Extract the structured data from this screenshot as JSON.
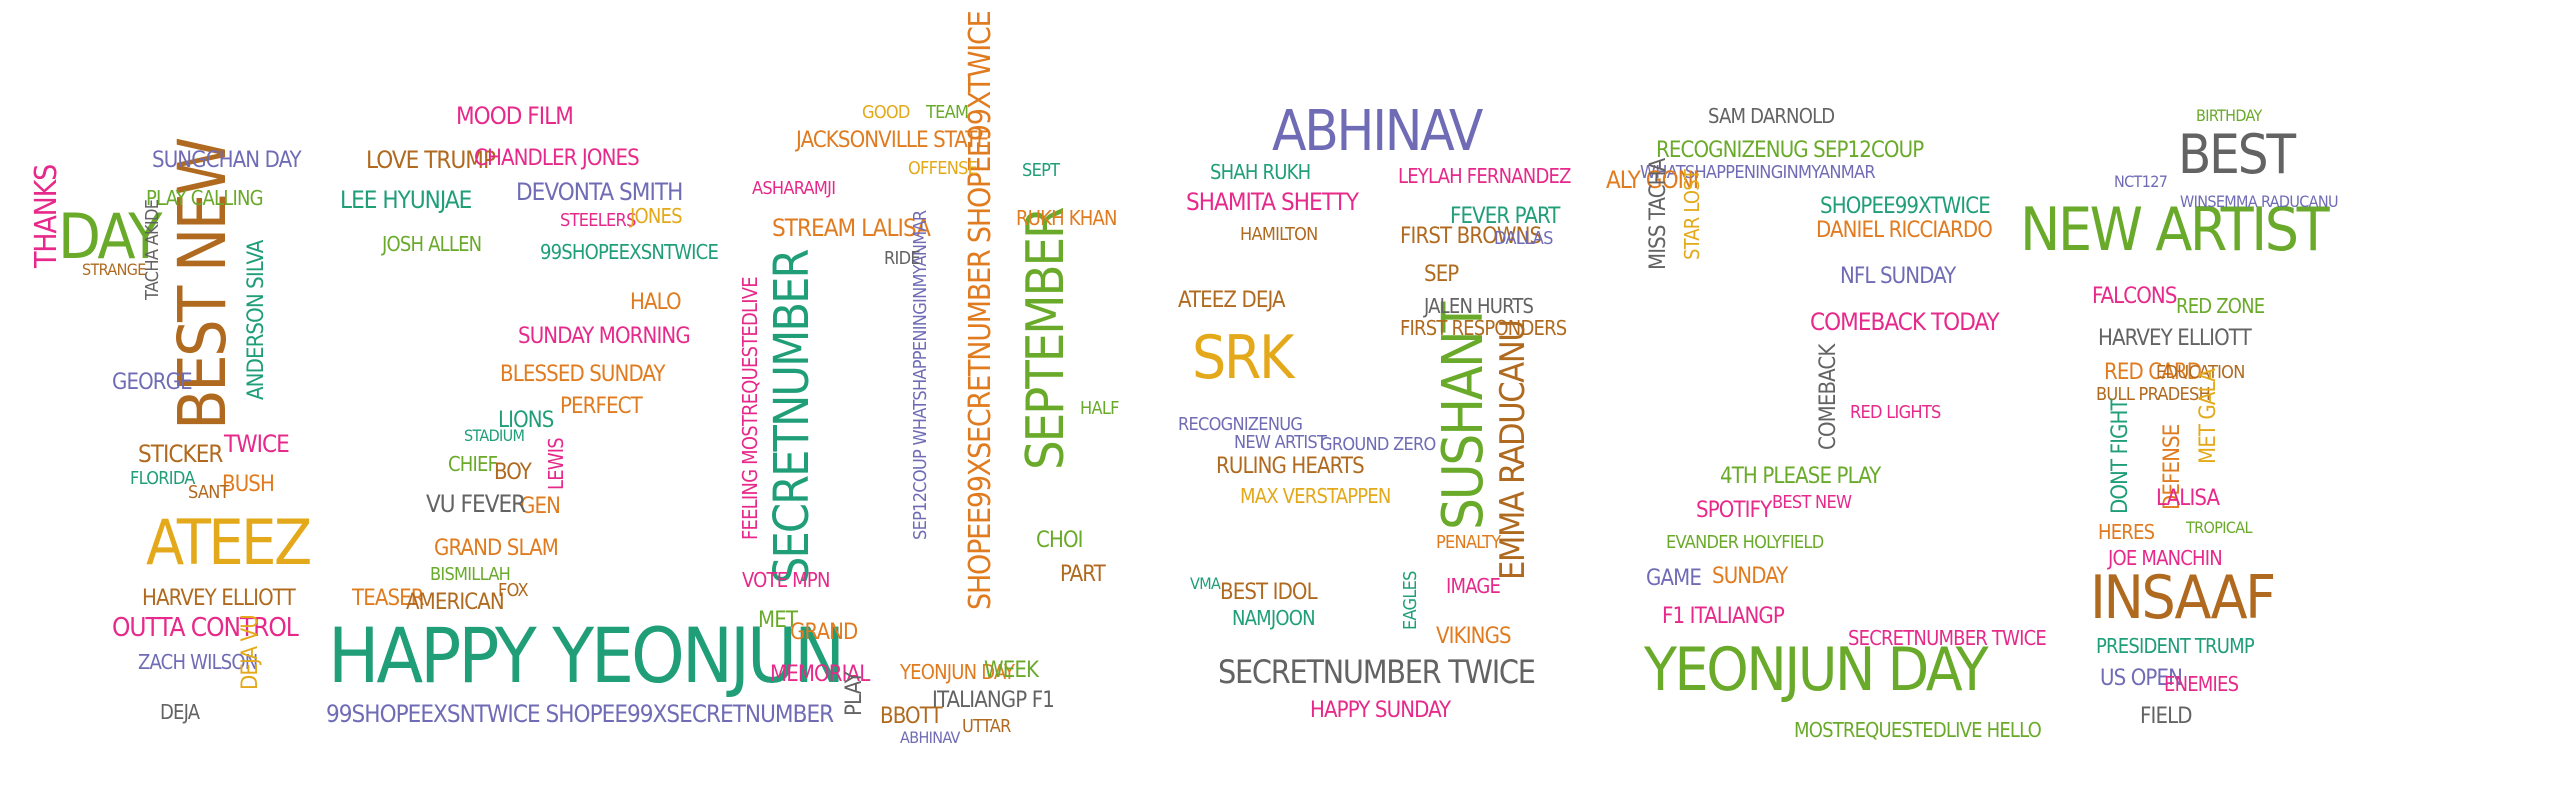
{
  "palette": {
    "green": "#6aaa2a",
    "teal": "#1f9e78",
    "orange": "#e07b1f",
    "purple": "#6f6cb5",
    "pink": "#e6298a",
    "gold": "#e3a91a",
    "brown": "#b06a1f",
    "gray": "#636363",
    "red": "#d55e00"
  },
  "words": [
    {
      "text": "DAY",
      "color": "green"
    },
    {
      "text": "BEST NEW",
      "color": "brown"
    },
    {
      "text": "ATEEZ",
      "color": "gold"
    },
    {
      "text": "OUTTA CONTROL",
      "color": "pink"
    },
    {
      "text": "HARVEY ELLIOTT",
      "color": "brown"
    },
    {
      "text": "ZACH WILSON",
      "color": "purple"
    },
    {
      "text": "SUNGCHAN DAY",
      "color": "purple"
    },
    {
      "text": "PLAY CALLING",
      "color": "green"
    },
    {
      "text": "GEORGE",
      "color": "purple"
    },
    {
      "text": "STICKER",
      "color": "brown"
    },
    {
      "text": "FLORIDA",
      "color": "teal"
    },
    {
      "text": "TWICE",
      "color": "pink"
    },
    {
      "text": "BUSH",
      "color": "orange"
    },
    {
      "text": "SANT",
      "color": "brown"
    },
    {
      "text": "DEJA",
      "color": "gray"
    },
    {
      "text": "DEJA VU",
      "color": "gold"
    },
    {
      "text": "ANDERSON SILVA",
      "color": "teal"
    },
    {
      "text": "TACHA AKIDE",
      "color": "gray"
    },
    {
      "text": "THANKS",
      "color": "pink"
    },
    {
      "text": "STRANGE",
      "color": "brown"
    },
    {
      "text": "HAPPY YEONJUN",
      "color": "teal"
    },
    {
      "text": "99SHOPEEXSNTWICE SHOPEE99XSECRETNUMBER",
      "color": "purple"
    },
    {
      "text": "MOOD FILM",
      "color": "pink"
    },
    {
      "text": "LOVE TRUMP",
      "color": "brown"
    },
    {
      "text": "CHANDLER JONES",
      "color": "pink"
    },
    {
      "text": "LEE HYUNJAE",
      "color": "teal"
    },
    {
      "text": "DEVONTA SMITH",
      "color": "purple"
    },
    {
      "text": "JOSH ALLEN",
      "color": "green"
    },
    {
      "text": "99SHOPEEXSNTWICE",
      "color": "teal"
    },
    {
      "text": "SUNDAY MORNING",
      "color": "pink"
    },
    {
      "text": "BLESSED SUNDAY",
      "color": "orange"
    },
    {
      "text": "PERFECT",
      "color": "orange"
    },
    {
      "text": "LIONS",
      "color": "teal"
    },
    {
      "text": "STADIUM",
      "color": "teal"
    },
    {
      "text": "CHIEF",
      "color": "green"
    },
    {
      "text": "BOY",
      "color": "brown"
    },
    {
      "text": "GEN",
      "color": "orange"
    },
    {
      "text": "VU FEVER",
      "color": "gray"
    },
    {
      "text": "GRAND SLAM",
      "color": "orange"
    },
    {
      "text": "BISMILLAH",
      "color": "green"
    },
    {
      "text": "TEASER",
      "color": "orange"
    },
    {
      "text": "AMERICAN",
      "color": "brown"
    },
    {
      "text": "HALO",
      "color": "orange"
    },
    {
      "text": "STEELERS",
      "color": "pink"
    },
    {
      "text": "JONES",
      "color": "gold"
    },
    {
      "text": "LEWIS",
      "color": "pink"
    },
    {
      "text": "FOX",
      "color": "brown"
    },
    {
      "text": "SECRETNUMBER",
      "color": "teal"
    },
    {
      "text": "SEPTEMBER",
      "color": "green"
    },
    {
      "text": "SHOPEE99XSECRETNUMBER SHOPEE99XTWICE",
      "color": "orange"
    },
    {
      "text": "JACKSONVILLE STATE",
      "color": "orange"
    },
    {
      "text": "STREAM LALISA",
      "color": "orange"
    },
    {
      "text": "RUKH KHAN",
      "color": "orange"
    },
    {
      "text": "ASHARAMJI",
      "color": "pink"
    },
    {
      "text": "FEELING MOSTREQUESTEDLIVE",
      "color": "pink"
    },
    {
      "text": "SEP12COUP WHATSHAPPENINGINMYANMAR",
      "color": "purple"
    },
    {
      "text": "VOTE MPN",
      "color": "pink"
    },
    {
      "text": "MET",
      "color": "green"
    },
    {
      "text": "GRAND",
      "color": "orange"
    },
    {
      "text": "MEMORIAL",
      "color": "pink"
    },
    {
      "text": "PLAY",
      "color": "gray"
    },
    {
      "text": "BBOTT",
      "color": "brown"
    },
    {
      "text": "YEONJUN DAY",
      "color": "orange"
    },
    {
      "text": "WEEK",
      "color": "green"
    },
    {
      "text": "ITALIANGP F1",
      "color": "gray"
    },
    {
      "text": "UTTAR",
      "color": "brown"
    },
    {
      "text": "ABHINAV",
      "color": "purple"
    },
    {
      "text": "CHOI",
      "color": "green"
    },
    {
      "text": "PART",
      "color": "brown"
    },
    {
      "text": "HALF",
      "color": "green"
    },
    {
      "text": "SEPT",
      "color": "teal"
    },
    {
      "text": "RIDE",
      "color": "gray"
    },
    {
      "text": "OFFENSE",
      "color": "gold"
    },
    {
      "text": "GOOD",
      "color": "gold"
    },
    {
      "text": "TEAM",
      "color": "green"
    },
    {
      "text": "VMA",
      "color": "teal"
    },
    {
      "text": "ABHINAV",
      "color": "purple"
    },
    {
      "text": "SRK",
      "color": "gold"
    },
    {
      "text": "SUSHANT",
      "color": "green"
    },
    {
      "text": "EMMA RADUCANU",
      "color": "brown"
    },
    {
      "text": "SHAMITA SHETTY",
      "color": "pink"
    },
    {
      "text": "SHAH RUKH",
      "color": "teal"
    },
    {
      "text": "LEYLAH FERNANDEZ",
      "color": "pink"
    },
    {
      "text": "FEVER PART",
      "color": "teal"
    },
    {
      "text": "HAMILTON",
      "color": "brown"
    },
    {
      "text": "FIRST BROWNS",
      "color": "brown"
    },
    {
      "text": "DALLAS",
      "color": "purple"
    },
    {
      "text": "SEP",
      "color": "brown"
    },
    {
      "text": "JALEN HURTS",
      "color": "gray"
    },
    {
      "text": "FIRST RESPONDERS",
      "color": "brown"
    },
    {
      "text": "ATEEZ DEJA",
      "color": "brown"
    },
    {
      "text": "RECOGNIZENUG",
      "color": "purple"
    },
    {
      "text": "NEW ARTIST",
      "color": "purple"
    },
    {
      "text": "GROUND ZERO",
      "color": "purple"
    },
    {
      "text": "RULING HEARTS",
      "color": "brown"
    },
    {
      "text": "MAX VERSTAPPEN",
      "color": "gold"
    },
    {
      "text": "BEST IDOL",
      "color": "brown"
    },
    {
      "text": "NAMJOON",
      "color": "teal"
    },
    {
      "text": "SECRETNUMBER TWICE",
      "color": "gray"
    },
    {
      "text": "HAPPY SUNDAY",
      "color": "pink"
    },
    {
      "text": "VIKINGS",
      "color": "orange"
    },
    {
      "text": "IMAGE",
      "color": "pink"
    },
    {
      "text": "PENALTY",
      "color": "orange"
    },
    {
      "text": "EAGLES",
      "color": "teal"
    },
    {
      "text": "RECOGNIZENUG SEP12COUP",
      "color": "green"
    },
    {
      "text": "WHATSHAPPENINGINMYANMAR",
      "color": "purple"
    },
    {
      "text": "ALY GONI",
      "color": "orange"
    },
    {
      "text": "SAM DARNOLD",
      "color": "gray"
    },
    {
      "text": "SHOPEE99XTWICE",
      "color": "teal"
    },
    {
      "text": "DANIEL RICCIARDO",
      "color": "orange"
    },
    {
      "text": "NFL SUNDAY",
      "color": "purple"
    },
    {
      "text": "COMEBACK TODAY",
      "color": "pink"
    },
    {
      "text": "YEONJUN DAY",
      "color": "green"
    },
    {
      "text": "F1 ITALIANGP",
      "color": "pink"
    },
    {
      "text": "EVANDER HOLYFIELD",
      "color": "green"
    },
    {
      "text": "4TH PLEASE PLAY",
      "color": "green"
    },
    {
      "text": "SPOTIFY",
      "color": "pink"
    },
    {
      "text": "GAME",
      "color": "purple"
    },
    {
      "text": "SUNDAY",
      "color": "orange"
    },
    {
      "text": "COMEBACK",
      "color": "gray"
    },
    {
      "text": "MISS TACHA",
      "color": "gray"
    },
    {
      "text": "STAR LOST",
      "color": "gold"
    },
    {
      "text": "RED LIGHTS",
      "color": "pink"
    },
    {
      "text": "BEST NEW",
      "color": "pink"
    },
    {
      "text": "MOSTREQUESTEDLIVE HELLO",
      "color": "green"
    },
    {
      "text": "SECRETNUMBER TWICE",
      "color": "pink"
    },
    {
      "text": "NEW ARTIST",
      "color": "green"
    },
    {
      "text": "BEST",
      "color": "gray"
    },
    {
      "text": "INSAAF",
      "color": "brown"
    },
    {
      "text": "FALCONS",
      "color": "pink"
    },
    {
      "text": "RED ZONE",
      "color": "green"
    },
    {
      "text": "HARVEY ELLIOTT",
      "color": "gray"
    },
    {
      "text": "RED CARD",
      "color": "orange"
    },
    {
      "text": "BULL PRADESH",
      "color": "brown"
    },
    {
      "text": "EDUCATION",
      "color": "brown"
    },
    {
      "text": "MET GALA",
      "color": "gold"
    },
    {
      "text": "DEFENSE",
      "color": "orange"
    },
    {
      "text": "DONT FIGHT",
      "color": "teal"
    },
    {
      "text": "LALISA",
      "color": "pink"
    },
    {
      "text": "JOE MANCHIN",
      "color": "pink"
    },
    {
      "text": "PRESIDENT TRUMP",
      "color": "teal"
    },
    {
      "text": "US OPEN",
      "color": "purple"
    },
    {
      "text": "ENEMIES",
      "color": "pink"
    },
    {
      "text": "FIELD",
      "color": "gray"
    },
    {
      "text": "BIRTHDAY",
      "color": "green"
    },
    {
      "text": "NCT127",
      "color": "purple"
    },
    {
      "text": "WINSEMMA RADUCANU",
      "color": "purple"
    },
    {
      "text": "TROPICAL",
      "color": "green"
    },
    {
      "text": "HERES",
      "color": "orange"
    }
  ]
}
